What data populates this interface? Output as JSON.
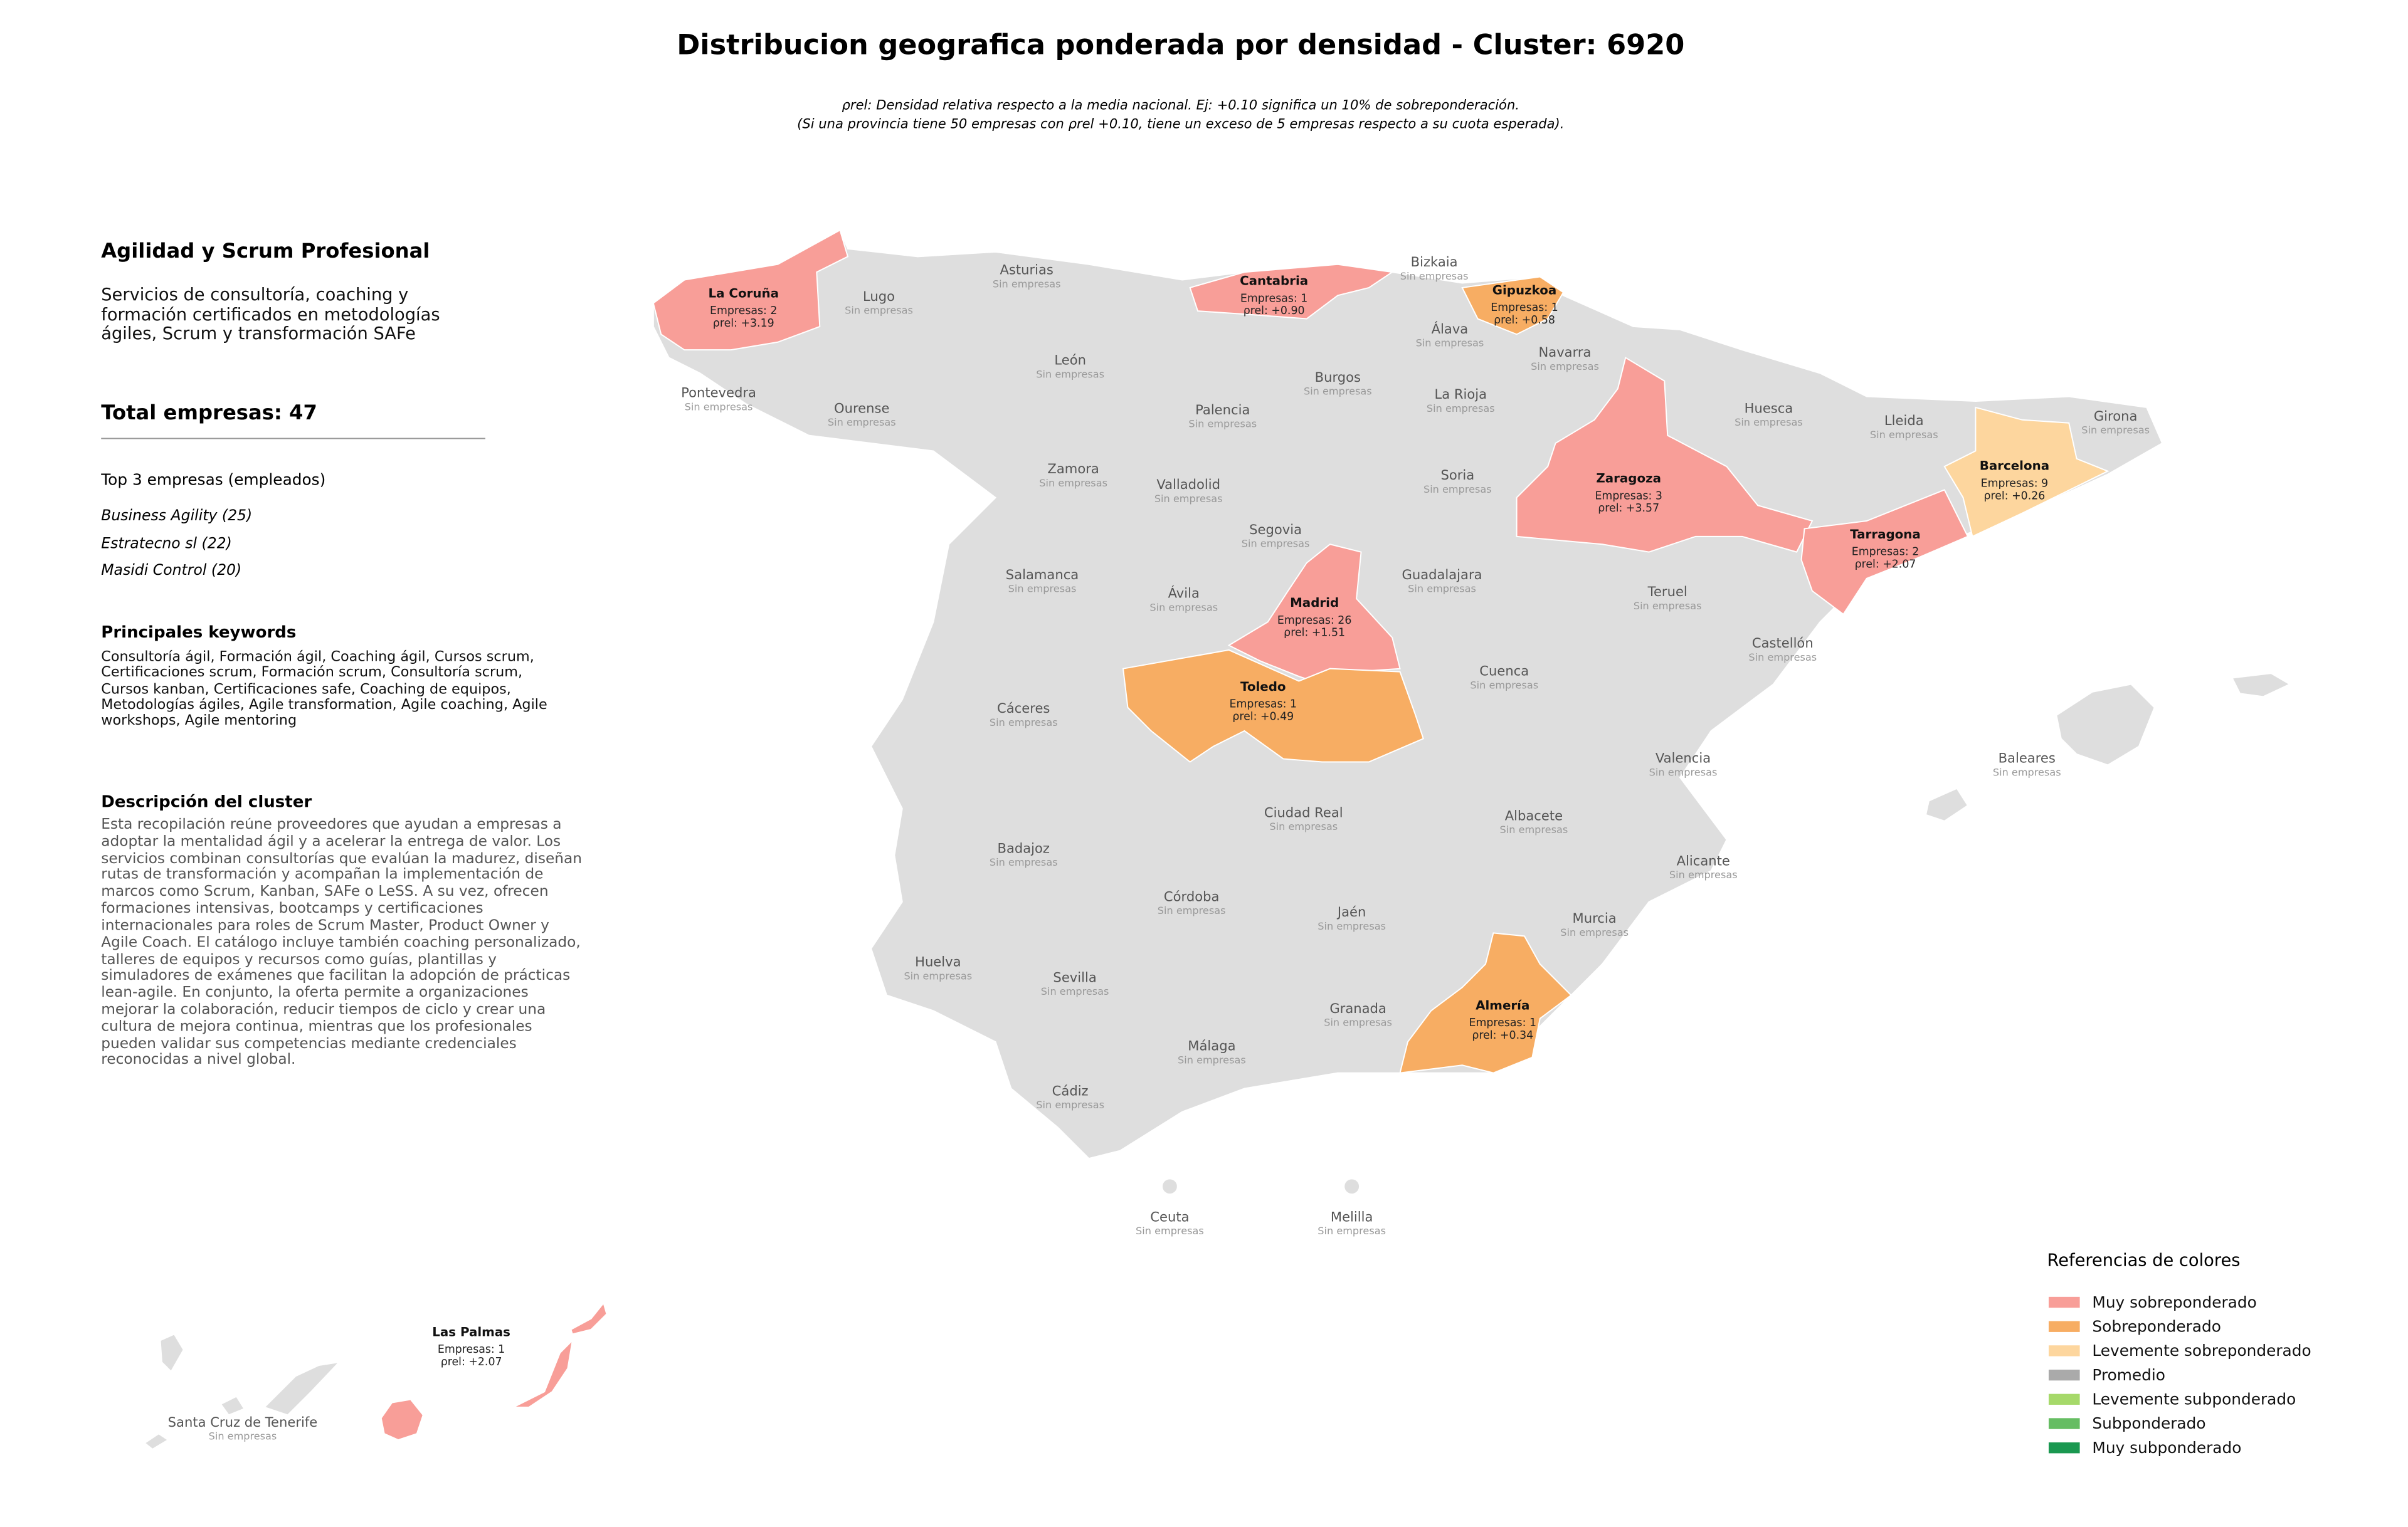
{
  "title": "Distribucion geografica ponderada por densidad - Cluster: 6920",
  "subtitle": [
    "ρrel: Densidad relativa respecto a la media nacional. Ej: +0.10 significa un 10% de sobreponderación.",
    "(Si una provincia tiene 50 empresas con ρrel +0.10, tiene un exceso de 5 empresas respecto a su cuota esperada)."
  ],
  "sidebar": {
    "heading": "Agilidad y Scrum Profesional",
    "summary": "Servicios de consultoría, coaching y formación certificados en metodologías ágiles, Scrum y transformación SAFe",
    "total": "Total empresas: 47",
    "top_heading": "Top 3 empresas (empleados)",
    "top": [
      "Business Agility (25)",
      "Estratecno sl (22)",
      "Masidi Control (20)"
    ],
    "keywords_heading": "Principales keywords",
    "keywords": "Consultoría ágil, Formación ágil, Coaching ágil, Cursos scrum, Certificaciones scrum, Formación scrum, Consultoría scrum, Cursos kanban, Certificaciones safe, Coaching de equipos, Metodologías ágiles, Agile transformation, Agile coaching, Agile workshops, Agile mentoring",
    "description_heading": "Descripción del cluster",
    "description": "Esta recopilación reúne proveedores que ayudan a empresas a adoptar la mentalidad ágil y a acelerar la entrega de valor. Los servicios combinan consultorías que evalúan la madurez, diseñan rutas de transformación y acompañan la implementación de marcos como Scrum, Kanban, SAFe o LeSS. A su vez, ofrecen formaciones intensivas, bootcamps y certificaciones internacionales para roles de Scrum Master, Product Owner y Agile Coach. El catálogo incluye también coaching personalizado, talleres de equipos y recursos como guías, plantillas y simuladores de exámenes que facilitan la adopción de prácticas lean-agile. En conjunto, la oferta permite a organizaciones mejorar la colaboración, reducir tiempos de ciclo y crear una cultura de mejora continua, mientras que los profesionales pueden validar sus competencias mediante credenciales reconocidas a nivel global."
  },
  "map": {
    "base_color": "#dedede",
    "provinces": [
      {
        "name": "La Coruña",
        "count_label": "Empresas: 2",
        "rho_label": "ρrel: +3.19",
        "category": 0
      },
      {
        "name": "Lugo",
        "status": "Sin empresas"
      },
      {
        "name": "Asturias",
        "status": "Sin empresas"
      },
      {
        "name": "Cantabria",
        "count_label": "Empresas: 1",
        "rho_label": "ρrel: +0.90",
        "category": 0
      },
      {
        "name": "Bizkaia",
        "status": "Sin empresas"
      },
      {
        "name": "Gipuzkoa",
        "count_label": "Empresas: 1",
        "rho_label": "ρrel: +0.58",
        "category": 1
      },
      {
        "name": "Álava",
        "status": "Sin empresas"
      },
      {
        "name": "Navarra",
        "status": "Sin empresas"
      },
      {
        "name": "León",
        "status": "Sin empresas"
      },
      {
        "name": "Burgos",
        "status": "Sin empresas"
      },
      {
        "name": "Pontevedra",
        "status": "Sin empresas"
      },
      {
        "name": "Ourense",
        "status": "Sin empresas"
      },
      {
        "name": "Palencia",
        "status": "Sin empresas"
      },
      {
        "name": "La Rioja",
        "status": "Sin empresas"
      },
      {
        "name": "Huesca",
        "status": "Sin empresas"
      },
      {
        "name": "Lleida",
        "status": "Sin empresas"
      },
      {
        "name": "Girona",
        "status": "Sin empresas"
      },
      {
        "name": "Barcelona",
        "count_label": "Empresas: 9",
        "rho_label": "ρrel: +0.26",
        "category": 2
      },
      {
        "name": "Zamora",
        "status": "Sin empresas"
      },
      {
        "name": "Valladolid",
        "status": "Sin empresas"
      },
      {
        "name": "Soria",
        "status": "Sin empresas"
      },
      {
        "name": "Zaragoza",
        "count_label": "Empresas: 3",
        "rho_label": "ρrel: +3.57",
        "category": 0
      },
      {
        "name": "Segovia",
        "status": "Sin empresas"
      },
      {
        "name": "Tarragona",
        "count_label": "Empresas: 2",
        "rho_label": "ρrel: +2.07",
        "category": 0
      },
      {
        "name": "Salamanca",
        "status": "Sin empresas"
      },
      {
        "name": "Ávila",
        "status": "Sin empresas"
      },
      {
        "name": "Guadalajara",
        "status": "Sin empresas"
      },
      {
        "name": "Madrid",
        "count_label": "Empresas: 26",
        "rho_label": "ρrel: +1.51",
        "category": 0
      },
      {
        "name": "Teruel",
        "status": "Sin empresas"
      },
      {
        "name": "Castellón",
        "status": "Sin empresas"
      },
      {
        "name": "Cuenca",
        "status": "Sin empresas"
      },
      {
        "name": "Toledo",
        "count_label": "Empresas: 1",
        "rho_label": "ρrel: +0.49",
        "category": 1
      },
      {
        "name": "Cáceres",
        "status": "Sin empresas"
      },
      {
        "name": "Valencia",
        "status": "Sin empresas"
      },
      {
        "name": "Baleares",
        "status": "Sin empresas"
      },
      {
        "name": "Ciudad Real",
        "status": "Sin empresas"
      },
      {
        "name": "Albacete",
        "status": "Sin empresas"
      },
      {
        "name": "Badajoz",
        "status": "Sin empresas"
      },
      {
        "name": "Alicante",
        "status": "Sin empresas"
      },
      {
        "name": "Córdoba",
        "status": "Sin empresas"
      },
      {
        "name": "Jaén",
        "status": "Sin empresas"
      },
      {
        "name": "Murcia",
        "status": "Sin empresas"
      },
      {
        "name": "Huelva",
        "status": "Sin empresas"
      },
      {
        "name": "Sevilla",
        "status": "Sin empresas"
      },
      {
        "name": "Granada",
        "status": "Sin empresas"
      },
      {
        "name": "Almería",
        "count_label": "Empresas: 1",
        "rho_label": "ρrel: +0.34",
        "category": 1
      },
      {
        "name": "Málaga",
        "status": "Sin empresas"
      },
      {
        "name": "Cádiz",
        "status": "Sin empresas"
      },
      {
        "name": "Ceuta",
        "status": "Sin empresas"
      },
      {
        "name": "Melilla",
        "status": "Sin empresas"
      },
      {
        "name": "Santa Cruz de Tenerife",
        "status": "Sin empresas"
      },
      {
        "name": "Las Palmas",
        "count_label": "Empresas: 1",
        "rho_label": "ρrel: +2.07",
        "category": 0
      }
    ]
  },
  "legend": {
    "title": "Referencias de colores",
    "items": [
      {
        "label": "Muy sobreponderado",
        "color": "#f89e98"
      },
      {
        "label": "Sobreponderado",
        "color": "#f7ad63"
      },
      {
        "label": "Levemente sobreponderado",
        "color": "#fdd69e"
      },
      {
        "label": "Promedio",
        "color": "#aaaaaa"
      },
      {
        "label": "Levemente subponderado",
        "color": "#a6d96a"
      },
      {
        "label": "Subponderado",
        "color": "#66bd63"
      },
      {
        "label": "Muy subponderado",
        "color": "#1a9850"
      }
    ]
  }
}
